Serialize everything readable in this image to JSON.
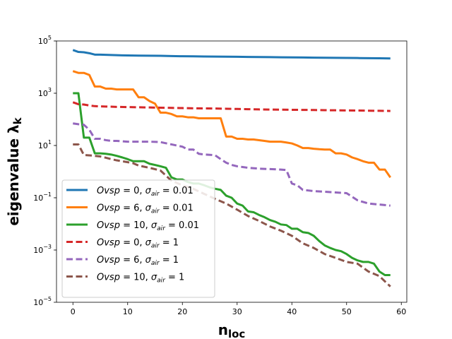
{
  "chart_data": {
    "type": "line",
    "title": "",
    "xlabel": "n",
    "xlabel_sub": "loc",
    "ylabel": "eigenvalue λ",
    "ylabel_sub": "k",
    "yscale": "log",
    "xlim": [
      -3,
      61
    ],
    "ylim": [
      1e-05,
      100000.0
    ],
    "xticks": [
      0,
      10,
      20,
      30,
      40,
      50,
      60
    ],
    "xtick_labels": [
      "0",
      "10",
      "20",
      "30",
      "40",
      "50",
      "60"
    ],
    "yticks": [
      1e-05,
      0.001,
      0.1,
      10.0,
      1000.0,
      100000.0
    ],
    "ytick_labels": [
      {
        "base": "10",
        "exp": "−5"
      },
      {
        "base": "10",
        "exp": "−3"
      },
      {
        "base": "10",
        "exp": "−1"
      },
      {
        "base": "10",
        "exp": "1"
      },
      {
        "base": "10",
        "exp": "3"
      },
      {
        "base": "10",
        "exp": "5"
      }
    ],
    "legend_position": "lower-left",
    "series": [
      {
        "name": "Ovsp=0, σair=0.01",
        "label_parts": {
          "ovsp": "0",
          "sigma": "0.01"
        },
        "color": "#1f77b4",
        "dash": "solid",
        "x": [
          0,
          1,
          2,
          3,
          4,
          5,
          6,
          7,
          8,
          9,
          10,
          12,
          14,
          16,
          18,
          20,
          22,
          24,
          26,
          28,
          30,
          32,
          34,
          36,
          38,
          40,
          42,
          44,
          46,
          48,
          50,
          52,
          54,
          56,
          58
        ],
        "y": [
          45000,
          38000,
          37000,
          34000,
          30000,
          30000,
          29500,
          29000,
          28500,
          28200,
          28000,
          27500,
          27200,
          27000,
          26500,
          26000,
          25800,
          25500,
          25300,
          25000,
          24800,
          24500,
          24300,
          24000,
          23800,
          23500,
          23300,
          23000,
          22800,
          22600,
          22400,
          22200,
          22000,
          21800,
          21500
        ]
      },
      {
        "name": "Ovsp=6, σair=0.01",
        "label_parts": {
          "ovsp": "6",
          "sigma": "0.01"
        },
        "color": "#ff7f0e",
        "dash": "solid",
        "x": [
          0,
          1,
          2,
          3,
          4,
          5,
          6,
          7,
          8,
          9,
          10,
          11,
          12,
          13,
          14,
          15,
          16,
          17,
          18,
          19,
          20,
          21,
          22,
          23,
          24,
          25,
          26,
          27,
          28,
          29,
          30,
          31,
          32,
          33,
          34,
          35,
          36,
          37,
          38,
          39,
          40,
          41,
          42,
          43,
          44,
          45,
          46,
          47,
          48,
          49,
          50,
          51,
          52,
          53,
          54,
          55,
          56,
          57,
          58
        ],
        "y": [
          7000,
          6000,
          6000,
          5000,
          1800,
          1800,
          1500,
          1500,
          1400,
          1400,
          1400,
          1400,
          700,
          700,
          500,
          400,
          180,
          180,
          160,
          130,
          130,
          120,
          120,
          110,
          110,
          110,
          110,
          110,
          22,
          22,
          18,
          18,
          17,
          17,
          16,
          15,
          14,
          14,
          14,
          13,
          12,
          10,
          8,
          8,
          7.5,
          7.2,
          7,
          7,
          5,
          5,
          4.5,
          3.5,
          3,
          2.5,
          2.2,
          2.2,
          1.2,
          1.2,
          0.6
        ]
      },
      {
        "name": "Ovsp=10, σair=0.01",
        "label_parts": {
          "ovsp": "10",
          "sigma": "0.01"
        },
        "color": "#2ca02c",
        "dash": "solid",
        "x": [
          0,
          1,
          2,
          3,
          4,
          5,
          6,
          7,
          8,
          9,
          10,
          11,
          12,
          13,
          14,
          15,
          16,
          17,
          18,
          19,
          20,
          21,
          22,
          23,
          24,
          25,
          26,
          27,
          28,
          29,
          30,
          31,
          32,
          33,
          34,
          35,
          36,
          37,
          38,
          39,
          40,
          41,
          42,
          43,
          44,
          45,
          46,
          47,
          48,
          49,
          50,
          51,
          52,
          53,
          54,
          55,
          56,
          57,
          58
        ],
        "y": [
          1000,
          1000,
          20,
          20,
          5,
          5,
          4.8,
          4.5,
          4,
          3.5,
          3,
          2.5,
          2.5,
          2.5,
          2,
          1.8,
          1.6,
          1.4,
          0.6,
          0.5,
          0.5,
          0.4,
          0.35,
          0.35,
          0.3,
          0.25,
          0.22,
          0.2,
          0.12,
          0.1,
          0.06,
          0.05,
          0.03,
          0.028,
          0.022,
          0.018,
          0.014,
          0.012,
          0.0095,
          0.009,
          0.0065,
          0.0065,
          0.0048,
          0.0045,
          0.0035,
          0.0022,
          0.0015,
          0.0012,
          0.001,
          0.0009,
          0.0007,
          0.0005,
          0.0004,
          0.00035,
          0.00035,
          0.0003,
          0.00015,
          0.00011,
          0.00011
        ]
      },
      {
        "name": "Ovsp=0, σair=1",
        "label_parts": {
          "ovsp": "0",
          "sigma": "1"
        },
        "color": "#d62728",
        "dash": "dashed",
        "x": [
          0,
          1,
          2,
          3,
          4,
          6,
          8,
          10,
          12,
          14,
          16,
          18,
          20,
          22,
          24,
          26,
          28,
          30,
          32,
          34,
          36,
          38,
          40,
          42,
          44,
          46,
          48,
          50,
          52,
          54,
          56,
          58
        ],
        "y": [
          450,
          380,
          370,
          340,
          320,
          310,
          300,
          295,
          290,
          285,
          280,
          275,
          270,
          265,
          262,
          260,
          255,
          250,
          245,
          240,
          238,
          235,
          232,
          230,
          228,
          225,
          222,
          220,
          218,
          215,
          212,
          210
        ]
      },
      {
        "name": "Ovsp=6, σair=1",
        "label_parts": {
          "ovsp": "6",
          "sigma": "1"
        },
        "color": "#9467bd",
        "dash": "dashed",
        "x": [
          0,
          1,
          2,
          3,
          4,
          5,
          6,
          7,
          8,
          9,
          10,
          11,
          12,
          14,
          16,
          18,
          20,
          21,
          22,
          23,
          24,
          25,
          26,
          27,
          28,
          29,
          30,
          31,
          32,
          34,
          36,
          38,
          39,
          40,
          41,
          42,
          43,
          44,
          46,
          48,
          50,
          52,
          54,
          56,
          58
        ],
        "y": [
          70,
          65,
          62,
          40,
          18,
          18,
          16,
          15,
          15,
          14.5,
          14,
          14,
          14,
          14,
          13.5,
          11,
          9,
          7,
          7,
          4.8,
          4.5,
          4.4,
          4.2,
          3,
          2.2,
          1.8,
          1.6,
          1.5,
          1.4,
          1.3,
          1.25,
          1.2,
          1.15,
          0.35,
          0.3,
          0.2,
          0.19,
          0.18,
          0.17,
          0.16,
          0.15,
          0.08,
          0.06,
          0.055,
          0.05
        ]
      },
      {
        "name": "Ovsp=10, σair=1",
        "label_parts": {
          "ovsp": "10",
          "sigma": "1"
        },
        "color": "#8c564b",
        "dash": "dashed",
        "x": [
          0,
          1,
          2,
          3,
          4,
          5,
          6,
          7,
          8,
          9,
          10,
          11,
          12,
          14,
          16,
          18,
          20,
          22,
          24,
          26,
          28,
          30,
          32,
          34,
          36,
          38,
          40,
          42,
          44,
          46,
          48,
          50,
          52,
          54,
          56,
          58
        ],
        "y": [
          11,
          11,
          4.3,
          4.2,
          4,
          3.8,
          3.4,
          3,
          2.7,
          2.5,
          2.3,
          2.1,
          1.7,
          1.4,
          1.1,
          0.45,
          0.3,
          0.22,
          0.14,
          0.09,
          0.06,
          0.035,
          0.02,
          0.013,
          0.008,
          0.0055,
          0.0035,
          0.0018,
          0.0012,
          0.0007,
          0.0005,
          0.00035,
          0.0003,
          0.00015,
          0.0001,
          4e-05
        ]
      }
    ]
  }
}
